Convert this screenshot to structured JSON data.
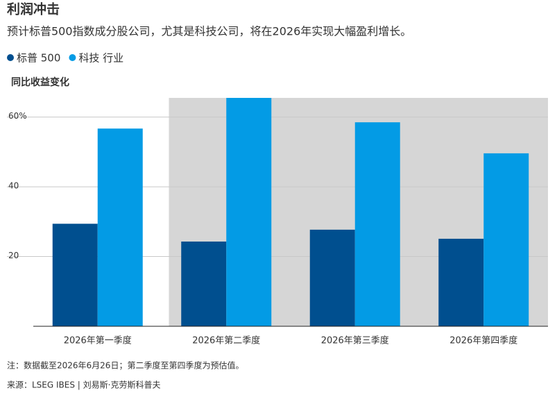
{
  "chart_data": {
    "type": "bar",
    "title": "利润冲击",
    "subtitle": "预计标普500指数成分股公司，尤其是科技公司，将在2026年实现大幅盈利增长。",
    "y_label": "同比收益变化",
    "categories": [
      "2026年第一季度",
      "2026年第二季度",
      "2026年第三季度",
      "2026年第四季度"
    ],
    "series": [
      {
        "name": "标普 500",
        "color": "#004f8f",
        "values": [
          29.4,
          24.3,
          27.7,
          25.1
        ]
      },
      {
        "name": "科技 行业",
        "color": "#039be5",
        "values": [
          56.7,
          65.5,
          58.5,
          49.6
        ]
      }
    ],
    "shaded": [
      false,
      true,
      true,
      true
    ],
    "ylim": [
      0,
      65.5
    ],
    "yticks": [
      20,
      40,
      {
        "value": 60,
        "label": "60%"
      }
    ],
    "grid": true,
    "note": "注：数据截至2026年6月26日；第二季度至第四季度为预估值。",
    "source": "来源：LSEG IBES | 刘易斯·克劳斯科普夫"
  }
}
